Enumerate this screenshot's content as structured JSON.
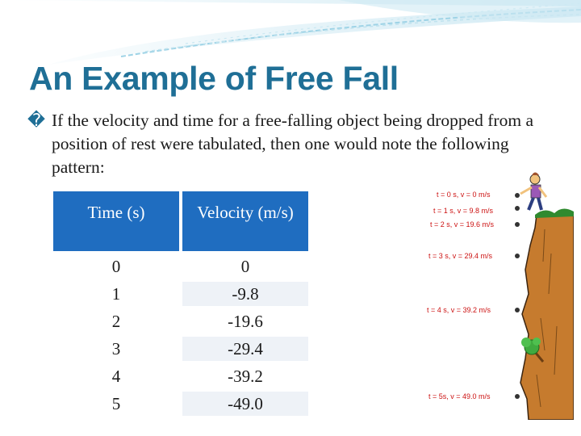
{
  "title": "An Example of Free Fall",
  "bullet_glyph": "�",
  "paragraph": "If the velocity and time for a free-falling object being dropped from a position of rest were tabulated, then one would note the following pattern:",
  "table": {
    "headers": [
      "Time (s)",
      "Velocity (m/s)"
    ],
    "rows": [
      [
        "0",
        "0"
      ],
      [
        "1",
        "-9.8"
      ],
      [
        "2",
        "-19.6"
      ],
      [
        "3",
        "-29.4"
      ],
      [
        "4",
        "-39.2"
      ],
      [
        "5",
        "-49.0"
      ]
    ]
  },
  "figure": {
    "labels": [
      "t = 0 s,  v = 0 m/s",
      "t = 1 s,  v = 9.8 m/s",
      "t = 2 s,  v = 19.6 m/s",
      "t = 3 s,  v = 29.4 m/s",
      "t = 4 s,  v = 39.2 m/s",
      "t = 5s,  v = 49.0 m/s"
    ]
  },
  "colors": {
    "title": "#1f6f96",
    "header_fill": "#1f6dc0",
    "label_red": "#cc1111",
    "cliff_brown": "#c67b2e"
  }
}
